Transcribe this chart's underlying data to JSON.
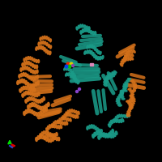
{
  "background_color": "#000000",
  "teal_color": "#1a9b88",
  "orange_color": "#d4711a",
  "teal_dark": "#0d7060",
  "orange_dark": "#a05010",
  "axis_green": "#00dd00",
  "axis_red": "#dd0000",
  "axis_blue": "#2244cc",
  "ligand_red": "#ee2200",
  "ligand_yellow": "#ddcc00",
  "ligand_green": "#00cc00",
  "ligand_blue": "#0044ee",
  "ligand_purple": "#8844aa",
  "pink_marker": "#dd88bb",
  "figsize": [
    2.0,
    2.0
  ],
  "dpi": 100
}
